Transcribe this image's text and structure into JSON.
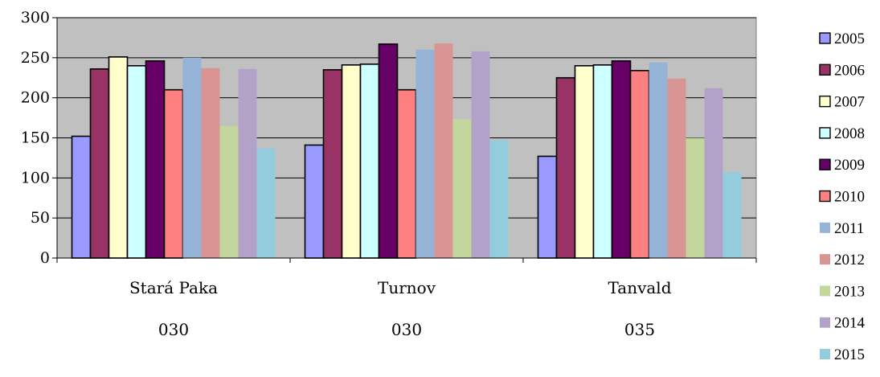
{
  "chart_data": {
    "type": "bar",
    "categories": [
      "Stará Paka",
      "Turnov",
      "Tanvald"
    ],
    "category_sublabels": [
      "030",
      "030",
      "035"
    ],
    "ylim": [
      0,
      300
    ],
    "yticks": [
      0,
      50,
      100,
      150,
      200,
      250,
      300
    ],
    "grid": true,
    "legend_position": "right",
    "series": [
      {
        "name": "2005",
        "color": "#9999ff",
        "outline": true,
        "values": [
          152,
          141,
          127
        ]
      },
      {
        "name": "2006",
        "color": "#993366",
        "outline": true,
        "values": [
          236,
          235,
          225
        ]
      },
      {
        "name": "2007",
        "color": "#ffffcc",
        "outline": true,
        "values": [
          251,
          241,
          240
        ]
      },
      {
        "name": "2008",
        "color": "#ccffff",
        "outline": true,
        "values": [
          240,
          242,
          241
        ]
      },
      {
        "name": "2009",
        "color": "#660066",
        "outline": true,
        "values": [
          246,
          267,
          246
        ]
      },
      {
        "name": "2010",
        "color": "#ff8080",
        "outline": true,
        "values": [
          210,
          210,
          234
        ]
      },
      {
        "name": "2011",
        "color": "#95b3d7",
        "outline": false,
        "values": [
          250,
          260,
          244
        ]
      },
      {
        "name": "2012",
        "color": "#d99594",
        "outline": false,
        "values": [
          237,
          268,
          224
        ]
      },
      {
        "name": "2013",
        "color": "#c3d69b",
        "outline": false,
        "values": [
          165,
          173,
          150
        ]
      },
      {
        "name": "2014",
        "color": "#b2a2c7",
        "outline": false,
        "values": [
          236,
          258,
          212
        ]
      },
      {
        "name": "2015",
        "color": "#93cddd",
        "outline": false,
        "values": [
          137,
          147,
          107
        ]
      }
    ]
  }
}
